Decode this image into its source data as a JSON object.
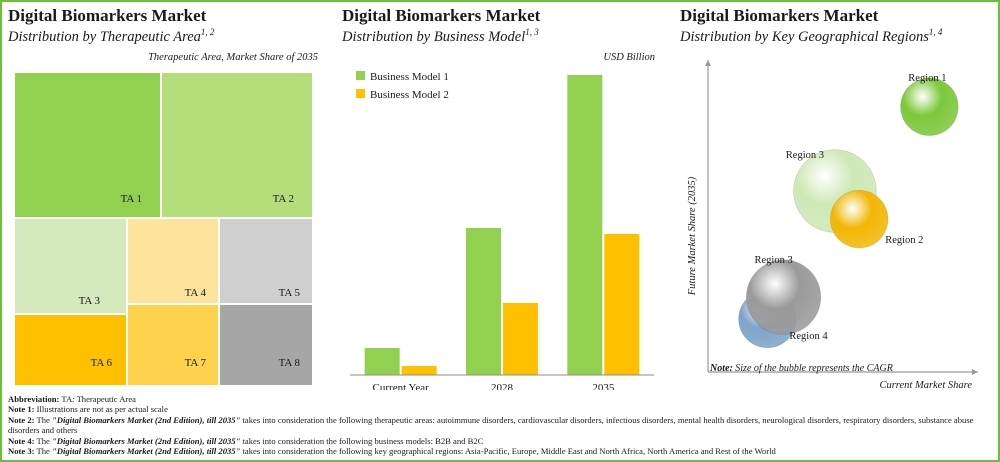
{
  "panels": {
    "therapeutic": {
      "title": "Digital Biomarkers Market",
      "subtitle": "Distribution by Therapeutic Area",
      "subtitle_sup": "1, 2",
      "note": "Therapeutic Area, Market Share of 2035"
    },
    "business": {
      "title": "Digital Biomarkers Market",
      "subtitle": "Distribution by Business Model",
      "subtitle_sup": "1, 3",
      "unit": "USD Billion"
    },
    "geography": {
      "title": "Digital Biomarkers Market",
      "subtitle": "Distribution by Key Geographical Regions",
      "subtitle_sup": "1, 4",
      "bubble_note_label": "Note:",
      "bubble_note": "Size of the bubble represents the CAGR"
    }
  },
  "chart_data": [
    {
      "type": "treemap",
      "title": "Digital Biomarkers Market",
      "subtitle": "Distribution by Therapeutic Area",
      "caption": "Therapeutic Area, Market Share of 2035",
      "cells": [
        {
          "label": "TA 1",
          "color": "#92d050"
        },
        {
          "label": "TA 2",
          "color": "#b4de7c"
        },
        {
          "label": "TA 3",
          "color": "#d5eabc"
        },
        {
          "label": "TA 4",
          "color": "#fde39b"
        },
        {
          "label": "TA 5",
          "color": "#cfcfcf"
        },
        {
          "label": "TA 6",
          "color": "#ffc000"
        },
        {
          "label": "TA 7",
          "color": "#ffd24d"
        },
        {
          "label": "TA 8",
          "color": "#a6a6a6"
        }
      ]
    },
    {
      "type": "bar",
      "title": "Digital Biomarkers Market",
      "subtitle": "Distribution by Business Model",
      "unit": "USD Billion",
      "categories": [
        "Current Year",
        "2028",
        "2035"
      ],
      "series": [
        {
          "name": "Business Model 1",
          "color": "#92d050",
          "values": [
            9,
            49,
            100
          ]
        },
        {
          "name": "Business Model 2",
          "color": "#ffc000",
          "values": [
            3,
            24,
            47
          ]
        }
      ],
      "ylim": [
        0,
        100
      ],
      "legend": "top-left",
      "grid": false
    },
    {
      "type": "bubble",
      "title": "Digital Biomarkers Market",
      "subtitle": "Distribution by Key Geographical Regions",
      "xlabel": "Current Market Share",
      "ylabel": "Future Market Share (2035)",
      "xlim": [
        0,
        100
      ],
      "ylim": [
        0,
        100
      ],
      "points": [
        {
          "name": "Region 1",
          "x": 82,
          "y": 85,
          "size": 4,
          "color": "#7cc83a"
        },
        {
          "name": "Region 3",
          "x": 47,
          "y": 58,
          "size": 7,
          "color": "#cfe8b5"
        },
        {
          "name": "Region 2",
          "x": 56,
          "y": 49,
          "size": 4,
          "color": "#f2b705"
        },
        {
          "name": "Region 3",
          "x": 28,
          "y": 24,
          "size": 6,
          "color": "#9a9a9a"
        },
        {
          "name": "Region 4",
          "x": 22,
          "y": 17,
          "size": 4,
          "color": "#7fa4c8"
        }
      ]
    }
  ],
  "notes": [
    {
      "label": "Abbreviation:",
      "text": " TA: Therapeutic Area"
    },
    {
      "label": "Note 1:",
      "text": " Illustrations are not as per actual scale"
    },
    {
      "label": "Note 2:",
      "pre": " The ",
      "report": "\"Digital Biomarkers Market (2nd Edition), till 2035\"",
      "text": " takes into consideration the following therapeutic areas: autoimmune disorders, cardiovascular disorders, infectious disorders, mental health disorders, neurological disorders, respiratory disorders, substance abuse disorders and others"
    },
    {
      "label": "Note 4:",
      "pre": " The ",
      "report": "\"Digital Biomarkers Market (2nd Edition), till 2035\"",
      "text": " takes into consideration the following  business models: B2B and B2C"
    },
    {
      "label": "Note 3:",
      "pre": " The ",
      "report": "\"Digital Biomarkers Market (2nd Edition), till 2035\"",
      "text": " takes into consideration the following key geographical regions: Asia-Pacific, Europe, Middle East and North Africa, North America and Rest of the World"
    }
  ]
}
